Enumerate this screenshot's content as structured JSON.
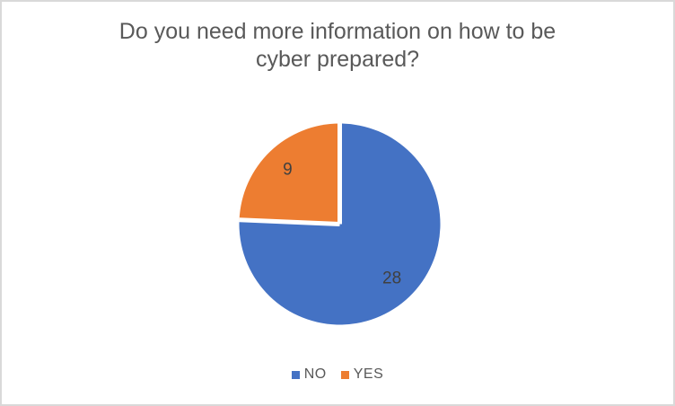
{
  "window": {
    "background_color": "#ffffff",
    "border_color": "#d9d9d9"
  },
  "chart_data": {
    "type": "pie",
    "title": "Do you need more information on how to be cyber prepared?",
    "categories": [
      "NO",
      "YES"
    ],
    "values": [
      28,
      9
    ],
    "colors": [
      "#4472C4",
      "#ED7D31"
    ],
    "start_angle_deg": 0,
    "direction": "clockwise",
    "show_data_labels": true,
    "data_label_values": [
      "28",
      "9"
    ],
    "legend_position": "bottom",
    "separator_color": "#ffffff",
    "title_color": "#595959",
    "data_label_color": "#404040",
    "legend_text_color": "#595959"
  }
}
